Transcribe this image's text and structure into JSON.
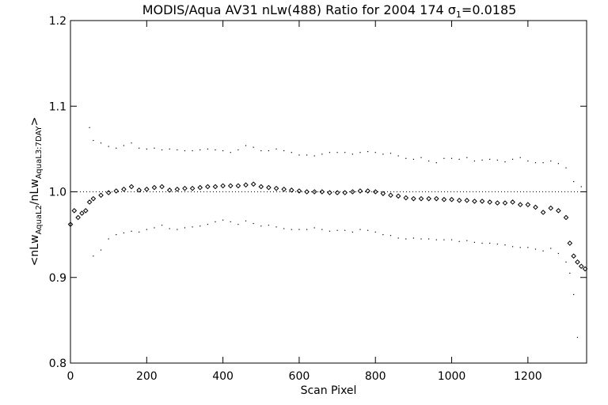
{
  "chart_data": {
    "type": "scatter",
    "title": "MODIS/Aqua AV31 nLw(488) Ratio for 2004 174 σ",
    "title_sub": "1",
    "title_suffix": "=0.0185",
    "xlabel": "Scan Pixel",
    "ylabel_parts": [
      "<nLw",
      "AquaL2",
      "/nLw",
      "AquaL3:7DAY",
      ">"
    ],
    "xlim": [
      0,
      1354
    ],
    "ylim": [
      0.8,
      1.2
    ],
    "x_ticks": [
      0,
      200,
      400,
      600,
      800,
      1000,
      1200
    ],
    "x_tick_labels": [
      "0",
      "200",
      "400",
      "600",
      "800",
      "1000",
      "1200"
    ],
    "y_ticks": [
      0.8,
      0.9,
      1.0,
      1.1,
      1.2
    ],
    "y_tick_labels": [
      "0.8",
      "0.9",
      "1.0",
      "1.1",
      "1.2"
    ],
    "reference_line_y": 1.0,
    "grid": false,
    "series": [
      {
        "role": "mean",
        "marker": "diamond",
        "x": [
          0,
          10,
          20,
          30,
          40,
          50,
          60,
          80,
          100,
          120,
          140,
          160,
          180,
          200,
          220,
          240,
          260,
          280,
          300,
          320,
          340,
          360,
          380,
          400,
          420,
          440,
          460,
          480,
          500,
          520,
          540,
          560,
          580,
          600,
          620,
          640,
          660,
          680,
          700,
          720,
          740,
          760,
          780,
          800,
          820,
          840,
          860,
          880,
          900,
          920,
          940,
          960,
          980,
          1000,
          1020,
          1040,
          1060,
          1080,
          1100,
          1120,
          1140,
          1160,
          1180,
          1200,
          1220,
          1240,
          1260,
          1280,
          1300,
          1310,
          1320,
          1330,
          1340,
          1350
        ],
        "y": [
          0.962,
          0.978,
          0.97,
          0.975,
          0.978,
          0.988,
          0.992,
          0.996,
          0.999,
          1.001,
          1.003,
          1.006,
          1.002,
          1.003,
          1.005,
          1.006,
          1.002,
          1.003,
          1.004,
          1.004,
          1.005,
          1.006,
          1.006,
          1.007,
          1.007,
          1.007,
          1.008,
          1.009,
          1.006,
          1.005,
          1.004,
          1.003,
          1.002,
          1.001,
          1.0,
          1.0,
          1.0,
          0.999,
          0.999,
          0.999,
          1.0,
          1.001,
          1.001,
          1.0,
          0.998,
          0.996,
          0.995,
          0.993,
          0.992,
          0.992,
          0.992,
          0.992,
          0.991,
          0.991,
          0.99,
          0.99,
          0.989,
          0.989,
          0.988,
          0.987,
          0.987,
          0.988,
          0.985,
          0.985,
          0.982,
          0.976,
          0.981,
          0.978,
          0.97,
          0.94,
          0.925,
          0.918,
          0.913,
          0.91
        ]
      },
      {
        "role": "upper",
        "marker": "dot",
        "x": [
          50,
          60,
          80,
          100,
          120,
          140,
          160,
          180,
          200,
          220,
          240,
          260,
          280,
          300,
          320,
          340,
          360,
          380,
          400,
          420,
          440,
          460,
          480,
          500,
          520,
          540,
          560,
          580,
          600,
          620,
          640,
          660,
          680,
          700,
          720,
          740,
          760,
          780,
          800,
          820,
          840,
          860,
          880,
          900,
          920,
          940,
          960,
          980,
          1000,
          1020,
          1040,
          1060,
          1080,
          1100,
          1120,
          1140,
          1160,
          1180,
          1200,
          1220,
          1240,
          1260,
          1280,
          1300,
          1320,
          1340
        ],
        "y": [
          1.075,
          1.06,
          1.057,
          1.053,
          1.051,
          1.054,
          1.057,
          1.051,
          1.05,
          1.051,
          1.049,
          1.05,
          1.049,
          1.048,
          1.048,
          1.049,
          1.05,
          1.049,
          1.048,
          1.046,
          1.049,
          1.054,
          1.052,
          1.048,
          1.048,
          1.05,
          1.048,
          1.046,
          1.043,
          1.043,
          1.042,
          1.044,
          1.046,
          1.046,
          1.046,
          1.044,
          1.046,
          1.047,
          1.046,
          1.044,
          1.045,
          1.042,
          1.039,
          1.038,
          1.04,
          1.036,
          1.034,
          1.039,
          1.039,
          1.038,
          1.04,
          1.036,
          1.037,
          1.038,
          1.037,
          1.035,
          1.038,
          1.04,
          1.036,
          1.034,
          1.034,
          1.036,
          1.033,
          1.028,
          1.012,
          1.006
        ]
      },
      {
        "role": "lower",
        "marker": "dot",
        "x": [
          60,
          80,
          100,
          120,
          140,
          160,
          180,
          200,
          220,
          240,
          260,
          280,
          300,
          320,
          340,
          360,
          380,
          400,
          420,
          440,
          460,
          480,
          500,
          520,
          540,
          560,
          580,
          600,
          620,
          640,
          660,
          680,
          700,
          720,
          740,
          760,
          780,
          800,
          820,
          840,
          860,
          880,
          900,
          920,
          940,
          960,
          980,
          1000,
          1020,
          1040,
          1060,
          1080,
          1100,
          1120,
          1140,
          1160,
          1180,
          1200,
          1220,
          1240,
          1260,
          1280,
          1300,
          1310,
          1320,
          1330
        ],
        "y": [
          0.925,
          0.932,
          0.945,
          0.95,
          0.952,
          0.954,
          0.953,
          0.956,
          0.958,
          0.961,
          0.957,
          0.956,
          0.958,
          0.959,
          0.96,
          0.962,
          0.965,
          0.967,
          0.965,
          0.962,
          0.966,
          0.963,
          0.96,
          0.961,
          0.959,
          0.957,
          0.956,
          0.956,
          0.956,
          0.958,
          0.956,
          0.954,
          0.955,
          0.955,
          0.953,
          0.956,
          0.955,
          0.953,
          0.95,
          0.949,
          0.946,
          0.945,
          0.946,
          0.945,
          0.945,
          0.944,
          0.944,
          0.944,
          0.942,
          0.943,
          0.941,
          0.94,
          0.94,
          0.939,
          0.938,
          0.936,
          0.935,
          0.935,
          0.933,
          0.931,
          0.934,
          0.928,
          0.918,
          0.905,
          0.88,
          0.83
        ]
      }
    ]
  }
}
